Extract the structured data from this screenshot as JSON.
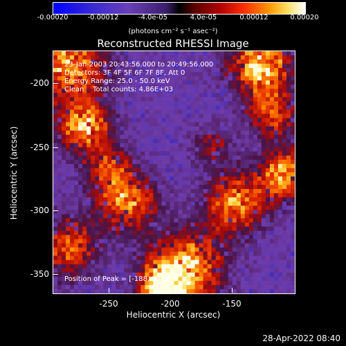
{
  "colorbar": {
    "ticks": [
      "-0.00020",
      "-0.00012",
      "-4.0e-05",
      "4.0e-05",
      "0.00012",
      "0.00020"
    ],
    "unit": "(photons cm⁻² s⁻¹ asec⁻²)"
  },
  "title": "Reconstructed RHESSI Image",
  "info": {
    "time": "23-Jan-2003 20:43:56.000 to 20:49:56.000",
    "detectors": "Detectors: 3F 4F 5F 6F 7F 8F, Att 0",
    "energy": "Energy Range: 25.0 - 50.0 keV",
    "clean": "Clean    Total counts: 4.86E+03",
    "peak": "Position of Peak = [-188,-230]"
  },
  "axes": {
    "xlabel": "Heliocentric X (arcsec)",
    "ylabel": "Heliocentric Y (arcsec)",
    "xticks": [
      "-250",
      "-200",
      "-150"
    ],
    "yticks": [
      "-200",
      "-250",
      "-300",
      "-350"
    ]
  },
  "footer_date": "28-Apr-2022 08:40"
}
